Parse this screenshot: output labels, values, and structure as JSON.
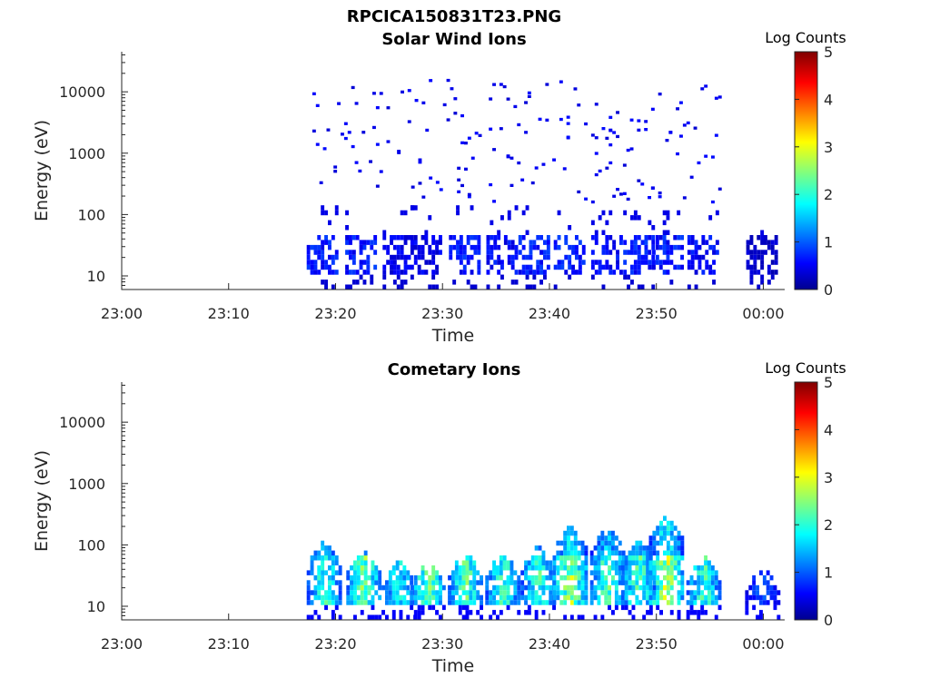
{
  "figure": {
    "title": "RPCICA150831T23.PNG"
  },
  "chart_data": [
    {
      "type": "heatmap",
      "title": "Solar Wind Ions",
      "xlabel": "Time",
      "ylabel": "Energy (eV)",
      "x_ticks": [
        "23:00",
        "23:10",
        "23:20",
        "23:30",
        "23:40",
        "23:50",
        "00:00"
      ],
      "y_ticks": [
        "10",
        "100",
        "1000",
        "10000"
      ],
      "y_tick_values": [
        10,
        100,
        1000,
        10000
      ],
      "y_scale": "log",
      "ylim": [
        6,
        45000
      ],
      "xlim_minutes": [
        0,
        62
      ],
      "colorbar": {
        "label": "Log Counts",
        "ticks": [
          "0",
          "1",
          "2",
          "3",
          "4",
          "5"
        ],
        "range": [
          0,
          5
        ],
        "colormap": "jet"
      },
      "data_time_range_minutes": [
        17.5,
        60
      ],
      "bursts": [
        {
          "t": 18.7,
          "log_counts": 0.8
        },
        {
          "t": 22.3,
          "log_counts": 0.8
        },
        {
          "t": 25.8,
          "log_counts": 0.6
        },
        {
          "t": 28.4,
          "log_counts": 0.6
        },
        {
          "t": 32.0,
          "log_counts": 0.8
        },
        {
          "t": 35.5,
          "log_counts": 0.7
        },
        {
          "t": 38.5,
          "log_counts": 0.8
        },
        {
          "t": 41.8,
          "log_counts": 0.8
        },
        {
          "t": 45.3,
          "log_counts": 0.7
        },
        {
          "t": 48.3,
          "log_counts": 0.8
        },
        {
          "t": 51.0,
          "log_counts": 0.8
        },
        {
          "t": 54.3,
          "log_counts": 0.7
        },
        {
          "t": 59.8,
          "log_counts": 0.4
        }
      ]
    },
    {
      "type": "heatmap",
      "title": "Cometary Ions",
      "xlabel": "Time",
      "ylabel": "Energy (eV)",
      "x_ticks": [
        "23:00",
        "23:10",
        "23:20",
        "23:30",
        "23:40",
        "23:50",
        "00:00"
      ],
      "y_ticks": [
        "10",
        "100",
        "1000",
        "10000"
      ],
      "y_tick_values": [
        10,
        100,
        1000,
        10000
      ],
      "y_scale": "log",
      "ylim": [
        6,
        45000
      ],
      "xlim_minutes": [
        0,
        62
      ],
      "colorbar": {
        "label": "Log Counts",
        "ticks": [
          "0",
          "1",
          "2",
          "3",
          "4",
          "5"
        ],
        "range": [
          0,
          5
        ],
        "colormap": "jet"
      },
      "data_time_range_minutes": [
        17.5,
        60
      ],
      "bursts": [
        {
          "t": 18.8,
          "log_counts": 2.0,
          "emax": 110
        },
        {
          "t": 22.5,
          "log_counts": 2.3,
          "emax": 80
        },
        {
          "t": 25.8,
          "log_counts": 1.8,
          "emax": 50
        },
        {
          "t": 28.5,
          "log_counts": 2.3,
          "emax": 50
        },
        {
          "t": 32.0,
          "log_counts": 2.2,
          "emax": 70
        },
        {
          "t": 35.5,
          "log_counts": 2.0,
          "emax": 70
        },
        {
          "t": 38.8,
          "log_counts": 2.0,
          "emax": 90
        },
        {
          "t": 41.8,
          "log_counts": 2.5,
          "emax": 200
        },
        {
          "t": 45.3,
          "log_counts": 2.2,
          "emax": 180
        },
        {
          "t": 48.2,
          "log_counts": 2.1,
          "emax": 120
        },
        {
          "t": 50.8,
          "log_counts": 2.6,
          "emax": 300
        },
        {
          "t": 54.3,
          "log_counts": 2.0,
          "emax": 60
        },
        {
          "t": 59.8,
          "log_counts": 1.0,
          "emax": 40
        }
      ]
    }
  ]
}
